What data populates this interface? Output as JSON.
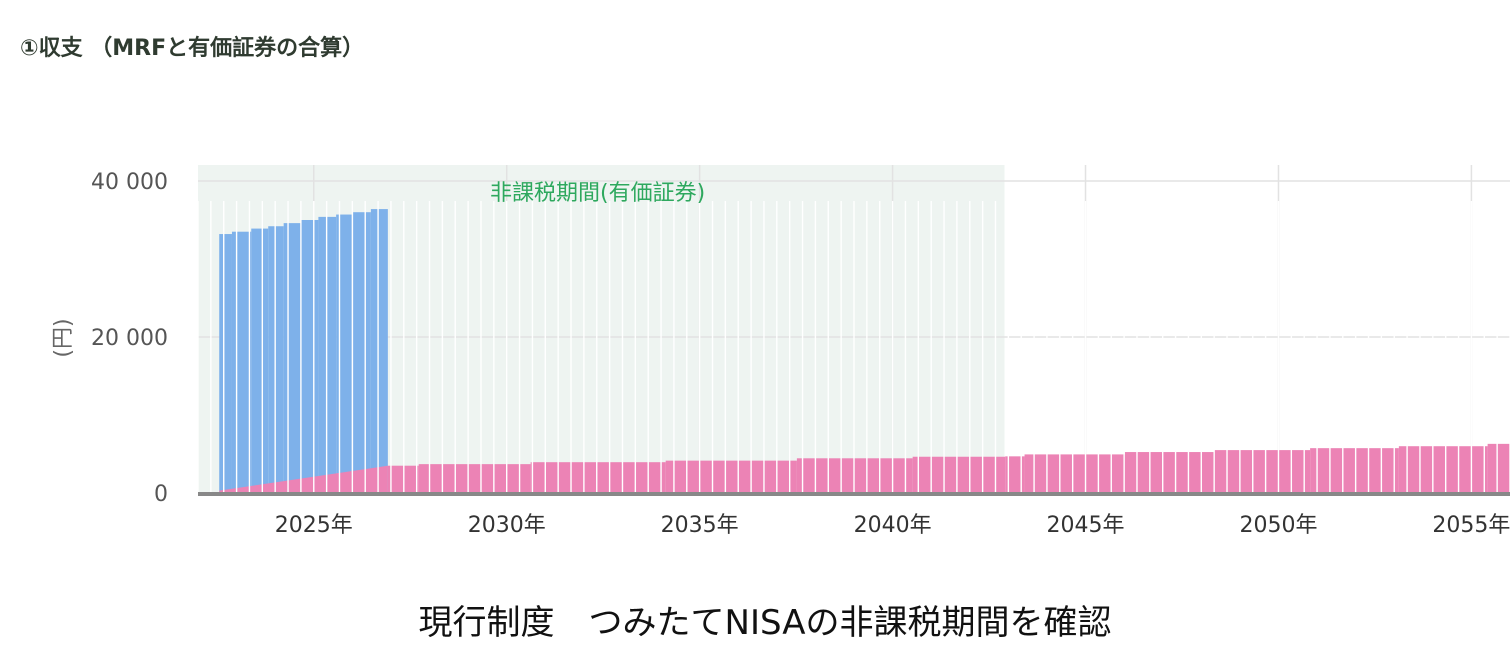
{
  "header": {
    "title": "①収支 （MRFと有価証券の合算）"
  },
  "caption": "現行制度　つみたてNISAの非課税期間を確認",
  "colors": {
    "blue": "#7eb1ea",
    "pink": "#ec83b5",
    "shade": "#eef4f1",
    "annotation": "#2ea85e",
    "axis": "#888888",
    "grid": "#e2e2e2"
  },
  "chart_data": {
    "type": "bar",
    "ylabel": "(円)",
    "ylim": [
      0,
      40000
    ],
    "yticks": [
      0,
      20000,
      40000
    ],
    "ytick_labels": [
      "0",
      "20 000",
      "40 000"
    ],
    "xlim": [
      2022.0,
      2056.0
    ],
    "xticks": [
      2025,
      2030,
      2035,
      2040,
      2045,
      2050,
      2055
    ],
    "xtick_labels": [
      "2025年",
      "2030年",
      "2035年",
      "2040年",
      "2045年",
      "2050年",
      "2055年"
    ],
    "annotation": {
      "label": "非課税期間(有価証券)",
      "x_start": 2022.0,
      "x_end": 2042.9
    },
    "series": [
      {
        "color": "blue",
        "segments": [
          {
            "x0": 2022.55,
            "x1": 2022.88,
            "value": 33200
          },
          {
            "x0": 2022.88,
            "x1": 2023.38,
            "value": 33500
          },
          {
            "x0": 2023.38,
            "x1": 2023.82,
            "value": 33900
          },
          {
            "x0": 2023.82,
            "x1": 2024.22,
            "value": 34200
          },
          {
            "x0": 2024.22,
            "x1": 2024.68,
            "value": 34600
          },
          {
            "x0": 2024.68,
            "x1": 2025.12,
            "value": 35000
          },
          {
            "x0": 2025.12,
            "x1": 2025.58,
            "value": 35400
          },
          {
            "x0": 2025.58,
            "x1": 2026.02,
            "value": 35700
          },
          {
            "x0": 2026.02,
            "x1": 2026.48,
            "value": 36000
          },
          {
            "x0": 2026.48,
            "x1": 2026.92,
            "value": 36400
          }
        ]
      },
      {
        "color": "pink",
        "ramp": {
          "x0": 2022.55,
          "x1": 2026.92,
          "v0": 300,
          "v1": 3500
        },
        "segments": [
          {
            "x0": 2026.92,
            "x1": 2027.72,
            "value": 3500
          },
          {
            "x0": 2027.72,
            "x1": 2030.62,
            "value": 3700
          },
          {
            "x0": 2030.62,
            "x1": 2034.12,
            "value": 3950
          },
          {
            "x0": 2034.12,
            "x1": 2036.72,
            "value": 4150
          },
          {
            "x0": 2036.72,
            "x1": 2037.52,
            "value": 4150
          },
          {
            "x0": 2037.52,
            "x1": 2040.52,
            "value": 4450
          },
          {
            "x0": 2040.52,
            "x1": 2042.92,
            "value": 4650
          },
          {
            "x0": 2042.92,
            "x1": 2043.42,
            "value": 4700
          },
          {
            "x0": 2043.42,
            "x1": 2046.02,
            "value": 4950
          },
          {
            "x0": 2046.02,
            "x1": 2048.32,
            "value": 5250
          },
          {
            "x0": 2048.32,
            "x1": 2050.82,
            "value": 5500
          },
          {
            "x0": 2050.82,
            "x1": 2053.12,
            "value": 5750
          },
          {
            "x0": 2053.12,
            "x1": 2055.42,
            "value": 6000
          },
          {
            "x0": 2055.42,
            "x1": 2056.0,
            "value": 6300
          }
        ]
      }
    ]
  }
}
